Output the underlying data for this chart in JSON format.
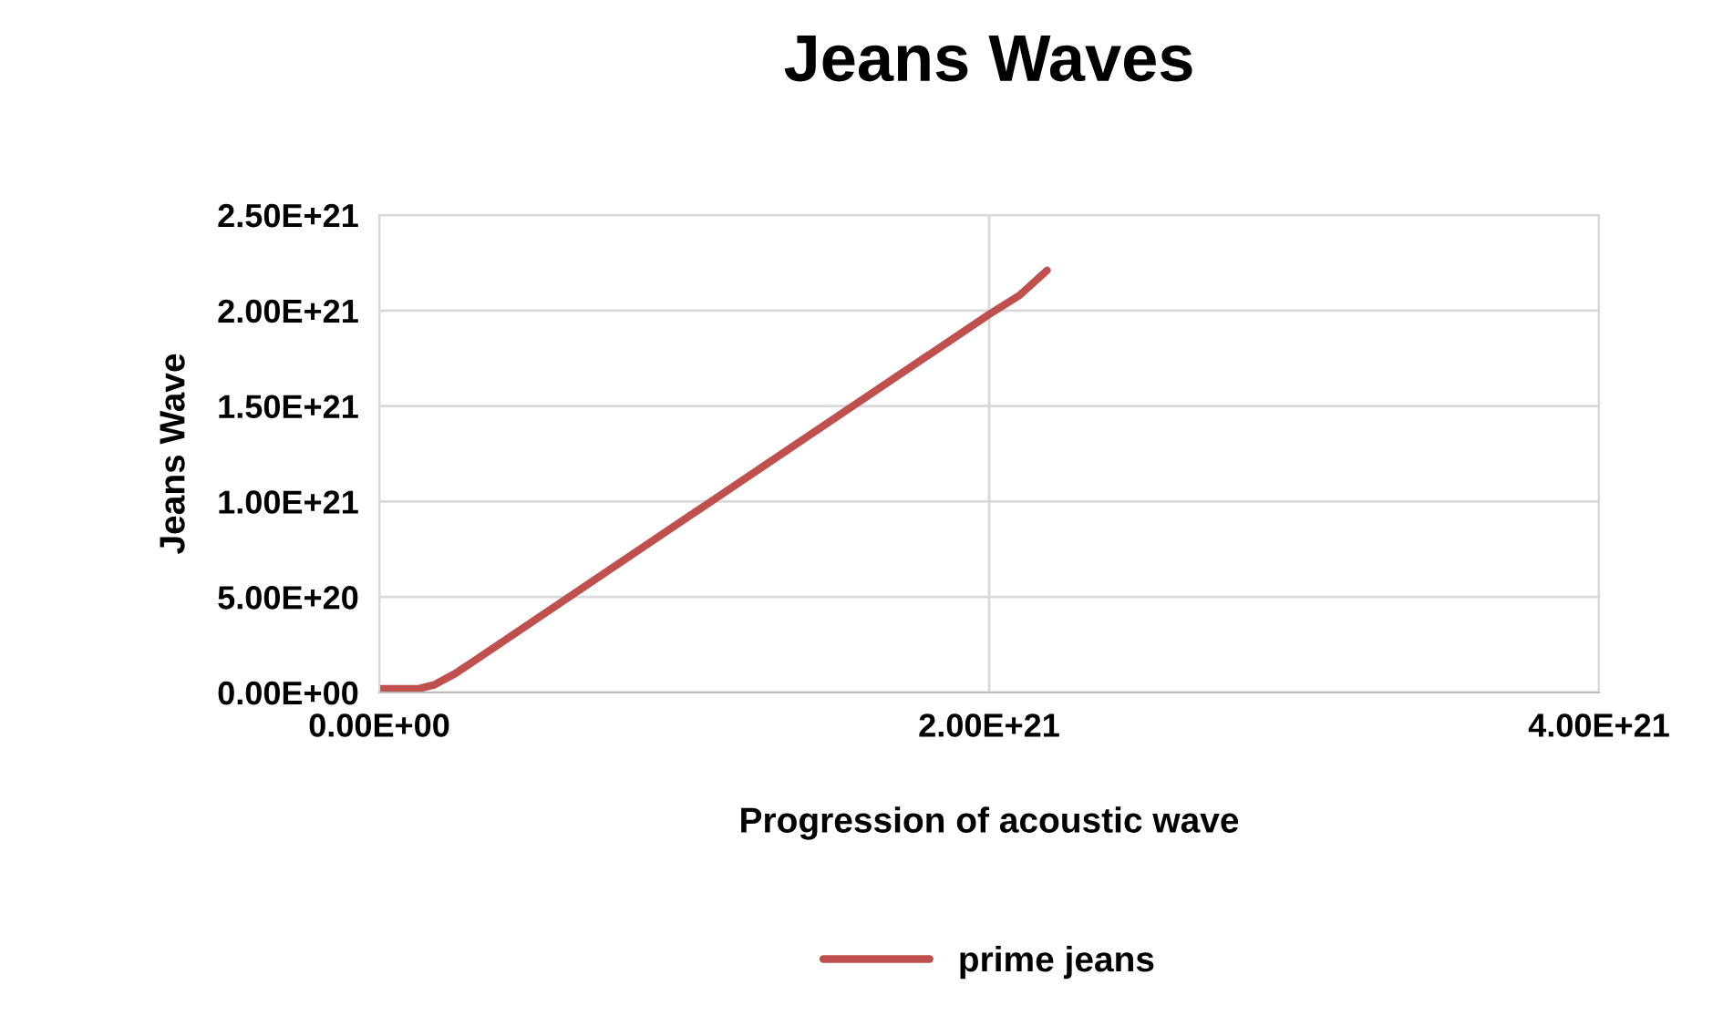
{
  "chart_data": {
    "type": "line",
    "title": "Jeans Waves",
    "xlabel": "Progression of acoustic wave",
    "ylabel": "Jeans Wave",
    "series": [
      {
        "name": "prime jeans",
        "color": "#c0504d",
        "x": [
          0,
          8e+19,
          1.3e+20,
          1.8e+20,
          2.5e+20,
          2e+21,
          2.1e+21,
          2.19e+21
        ],
        "values": [
          2e+19,
          2e+19,
          2e+19,
          4e+19,
          1e+20,
          1.98e+21,
          2.08e+21,
          2.21e+21
        ]
      }
    ],
    "xlim": [
      0,
      4e+21
    ],
    "xticks": [
      {
        "value": 0,
        "label": "0.00E+00"
      },
      {
        "value": 2e+21,
        "label": "2.00E+21"
      },
      {
        "value": 4e+21,
        "label": "4.00E+21"
      }
    ],
    "ylim": [
      0,
      2.5e+21
    ],
    "yticks": [
      {
        "value": 0,
        "label": "0.00E+00"
      },
      {
        "value": 5e+20,
        "label": "5.00E+20"
      },
      {
        "value": 1e+21,
        "label": "1.00E+21"
      },
      {
        "value": 1.5e+21,
        "label": "1.50E+21"
      },
      {
        "value": 2e+21,
        "label": "2.00E+21"
      },
      {
        "value": 2.5e+21,
        "label": "2.50E+21"
      }
    ],
    "grid": true,
    "legend": "bottom",
    "marker": "none",
    "line_style": "solid"
  }
}
